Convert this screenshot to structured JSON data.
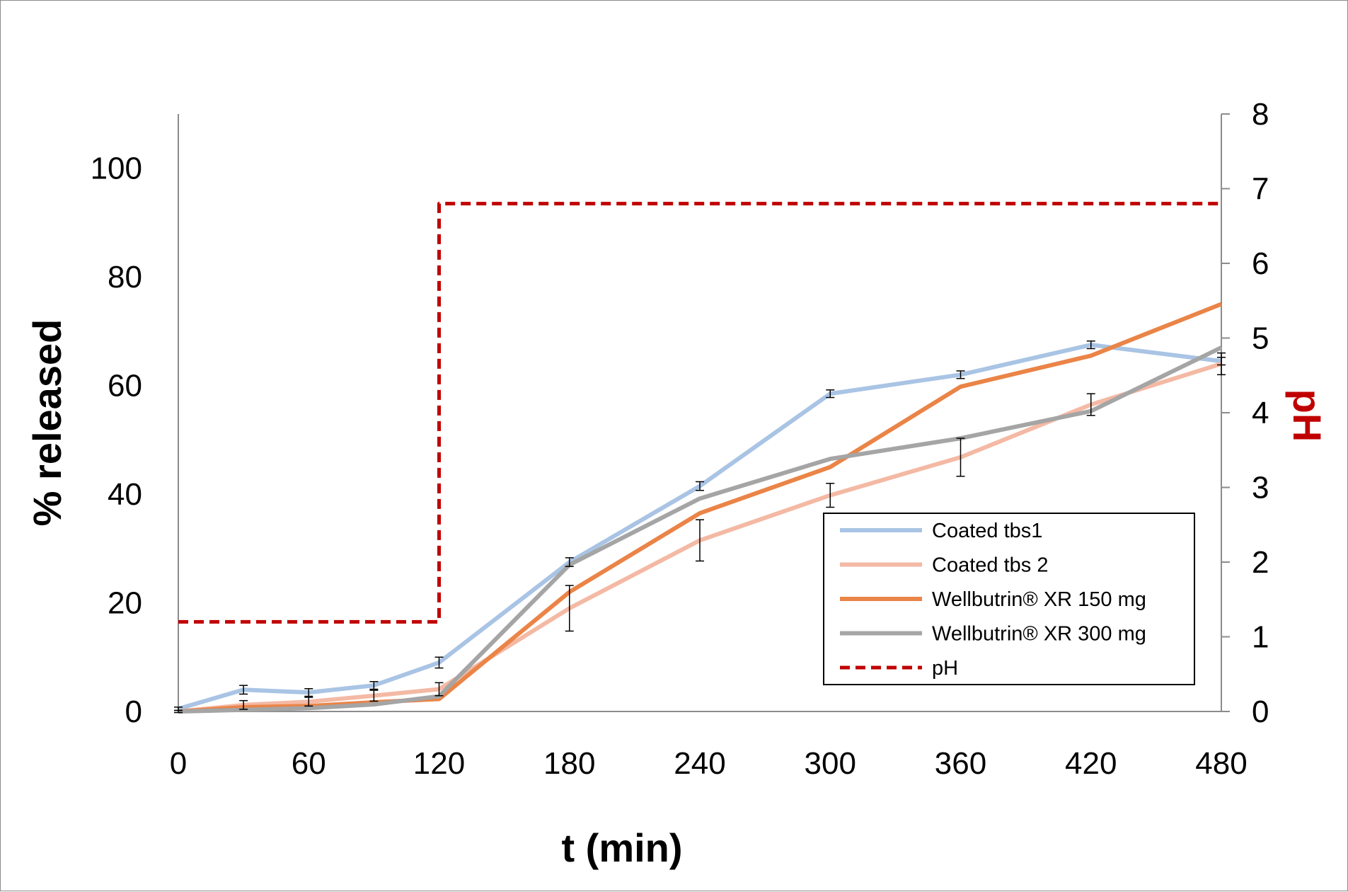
{
  "chart_data": {
    "type": "line",
    "xlabel": "t (min)",
    "ylabel": "% released",
    "y2label": "pH",
    "xlim": [
      0,
      480
    ],
    "ylim": [
      0,
      110
    ],
    "y2lim": [
      0,
      8
    ],
    "x_ticks": [
      "0",
      "60",
      "120",
      "180",
      "240",
      "300",
      "360",
      "420",
      "480"
    ],
    "y_ticks": [
      "0",
      "20",
      "40",
      "60",
      "80",
      "100"
    ],
    "y2_ticks": [
      "0",
      "1",
      "2",
      "3",
      "4",
      "5",
      "6",
      "7",
      "8"
    ],
    "legend_position": "bottom-right",
    "grid": false,
    "series": [
      {
        "name": "Coated tbs1",
        "axis": "left",
        "color": "#a9c4e4",
        "dash": false,
        "x": [
          0,
          30,
          60,
          90,
          120,
          180,
          240,
          300,
          360,
          420,
          480
        ],
        "y": [
          0.5,
          4.0,
          3.5,
          4.8,
          9.0,
          27.5,
          41.5,
          58.5,
          62.0,
          67.5,
          64.5
        ],
        "err": [
          0.3,
          0.8,
          0.7,
          0.7,
          1.0,
          0.8,
          0.8,
          0.7,
          0.7,
          0.7,
          0.7
        ]
      },
      {
        "name": "Coated tbs 2",
        "axis": "left",
        "color": "#f4b9a4",
        "dash": false,
        "x": [
          0,
          30,
          60,
          90,
          120,
          180,
          240,
          300,
          360,
          420,
          480
        ],
        "y": [
          0,
          1.2,
          1.8,
          2.9,
          4.1,
          19.0,
          31.5,
          39.8,
          46.8,
          56.5,
          64.0
        ],
        "err": [
          0.2,
          0.8,
          0.8,
          1.0,
          1.2,
          4.2,
          3.8,
          2.2,
          3.5,
          2.0,
          2.0
        ]
      },
      {
        "name": "Wellbutrin® XR 150 mg",
        "axis": "left",
        "color": "#ea8447",
        "dash": false,
        "x": [
          0,
          30,
          60,
          90,
          120,
          180,
          240,
          300,
          360,
          420,
          480
        ],
        "y": [
          0,
          0.8,
          1.0,
          1.7,
          2.3,
          22.0,
          36.5,
          45.0,
          59.8,
          65.5,
          75.0
        ],
        "err": [
          0,
          0,
          0,
          0,
          0,
          0,
          0,
          0,
          0,
          0,
          0
        ]
      },
      {
        "name": "Wellbutrin® XR 300 mg",
        "axis": "left",
        "color": "#a5a5a5",
        "dash": false,
        "x": [
          0,
          30,
          60,
          90,
          120,
          180,
          240,
          300,
          360,
          420,
          480
        ],
        "y": [
          0,
          0.3,
          0.6,
          1.3,
          2.8,
          27.0,
          39.2,
          46.5,
          50.3,
          55.3,
          67.0
        ],
        "err": [
          0,
          0,
          0,
          0,
          0,
          0,
          0,
          0,
          0,
          0,
          0
        ]
      },
      {
        "name": "pH",
        "axis": "right",
        "color": "#c00000",
        "dash": true,
        "x": [
          0,
          120,
          120,
          480
        ],
        "y": [
          1.2,
          1.2,
          6.8,
          6.8
        ],
        "err": [
          0,
          0,
          0,
          0
        ]
      }
    ]
  }
}
